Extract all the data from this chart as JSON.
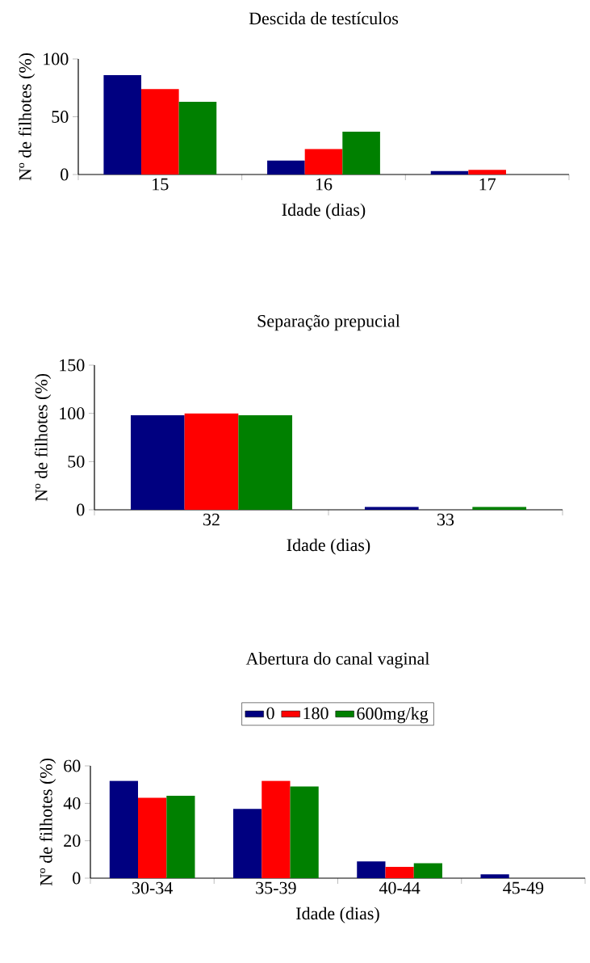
{
  "chart_data": [
    {
      "type": "bar",
      "title": "Descida de testículos",
      "xlabel": "Idade (dias)",
      "ylabel": "Nº de filhotes (%)",
      "categories": [
        "15",
        "16",
        "17"
      ],
      "ylim": [
        0,
        100
      ],
      "yticks": [
        0,
        50,
        100
      ],
      "series": [
        {
          "color": "#000080",
          "values": [
            86,
            12,
            3
          ]
        },
        {
          "color": "#ff0000",
          "values": [
            74,
            22,
            4
          ]
        },
        {
          "color": "#008000",
          "values": [
            63,
            37,
            0
          ]
        }
      ]
    },
    {
      "type": "bar",
      "title": "Separação prepucial",
      "xlabel": "Idade (dias)",
      "ylabel": "Nº de filhotes (%)",
      "categories": [
        "32",
        "33"
      ],
      "ylim": [
        0,
        150
      ],
      "yticks": [
        0,
        50,
        100,
        150
      ],
      "series": [
        {
          "color": "#000080",
          "values": [
            98,
            3
          ]
        },
        {
          "color": "#ff0000",
          "values": [
            100,
            0
          ]
        },
        {
          "color": "#008000",
          "values": [
            98,
            3
          ]
        }
      ]
    },
    {
      "type": "bar",
      "title": "Abertura do canal vaginal",
      "xlabel": "Idade (dias)",
      "ylabel": "Nº de filhotes (%)",
      "categories": [
        "30-34",
        "35-39",
        "40-44",
        "45-49"
      ],
      "ylim": [
        0,
        60
      ],
      "yticks": [
        0,
        20,
        40,
        60
      ],
      "legend": "top",
      "series": [
        {
          "name": "0",
          "color": "#000080",
          "values": [
            52,
            37,
            9,
            2
          ]
        },
        {
          "name": "180",
          "color": "#ff0000",
          "values": [
            43,
            52,
            6,
            0
          ]
        },
        {
          "name": "600mg/kg",
          "color": "#008000",
          "values": [
            44,
            49,
            8,
            0
          ]
        }
      ]
    }
  ]
}
